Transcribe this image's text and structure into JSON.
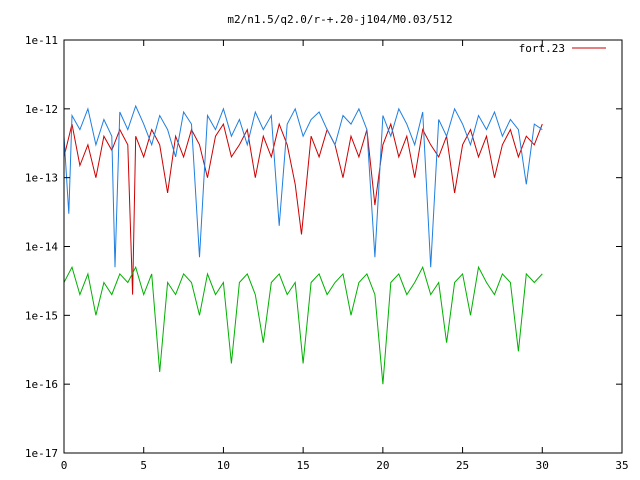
{
  "chart_data": {
    "type": "line",
    "title": "m2/n1.5/q2.0/r-+.20-j104/M0.03/512",
    "xlabel": "",
    "ylabel": "",
    "xlim": [
      0,
      35
    ],
    "ylim": [
      1e-17,
      1e-11
    ],
    "yscale": "log",
    "grid": false,
    "legend_position": "top-right",
    "x_ticks": [
      0,
      5,
      10,
      15,
      20,
      25,
      30,
      35
    ],
    "x_tick_labels": [
      "0",
      "5",
      "10",
      "15",
      "20",
      "25",
      "30",
      "35"
    ],
    "y_ticks": [
      1e-17,
      1e-16,
      1e-15,
      1e-14,
      1e-13,
      1e-12,
      1e-11
    ],
    "y_tick_labels": [
      "1e-17",
      "1e-16",
      "1e-15",
      "1e-14",
      "1e-13",
      "1e-12",
      "1e-11"
    ],
    "series": [
      {
        "name": "fort.23",
        "color": "#cc0000",
        "x": [
          0.0,
          0.5,
          1.0,
          1.5,
          2.0,
          2.5,
          3.0,
          3.5,
          4.0,
          4.3,
          4.5,
          5.0,
          5.5,
          6.0,
          6.5,
          7.0,
          7.5,
          8.0,
          8.5,
          9.0,
          9.5,
          10.0,
          10.5,
          11.0,
          11.5,
          12.0,
          12.5,
          13.0,
          13.5,
          14.0,
          14.5,
          14.9,
          15.5,
          16.0,
          16.5,
          17.0,
          17.5,
          18.0,
          18.5,
          19.0,
          19.5,
          20.0,
          20.5,
          21.0,
          21.5,
          22.0,
          22.5,
          23.0,
          23.5,
          24.0,
          24.5,
          25.0,
          25.5,
          26.0,
          26.5,
          27.0,
          27.5,
          28.0,
          28.5,
          29.0,
          29.5,
          30.0
        ],
        "y": [
          2e-13,
          6e-13,
          1.5e-13,
          3e-13,
          1e-13,
          4e-13,
          2.5e-13,
          5e-13,
          3e-13,
          2e-15,
          4e-13,
          2e-13,
          5e-13,
          3e-13,
          6e-14,
          4e-13,
          2e-13,
          5e-13,
          3e-13,
          1e-13,
          4e-13,
          6e-13,
          2e-13,
          3e-13,
          5e-13,
          1e-13,
          4e-13,
          2e-13,
          6e-13,
          3e-13,
          8e-14,
          1.5e-14,
          4e-13,
          2e-13,
          5e-13,
          3e-13,
          1e-13,
          4e-13,
          2e-13,
          5e-13,
          4e-14,
          3e-13,
          6e-13,
          2e-13,
          4e-13,
          1e-13,
          5e-13,
          3e-13,
          2e-13,
          4e-13,
          6e-14,
          3e-13,
          5e-13,
          2e-13,
          4e-13,
          1e-13,
          3e-13,
          5e-13,
          2e-13,
          4e-13,
          3e-13,
          6e-13
        ]
      },
      {
        "color": "#1f7fe0",
        "x": [
          0.0,
          0.3,
          0.5,
          1.0,
          1.5,
          2.0,
          2.5,
          3.0,
          3.2,
          3.5,
          4.0,
          4.5,
          5.0,
          5.5,
          6.0,
          6.5,
          7.0,
          7.5,
          8.0,
          8.5,
          9.0,
          9.5,
          10.0,
          10.5,
          11.0,
          11.5,
          12.0,
          12.5,
          13.0,
          13.5,
          14.0,
          14.5,
          15.0,
          15.5,
          16.0,
          16.5,
          17.0,
          17.5,
          18.0,
          18.5,
          19.0,
          19.5,
          20.0,
          20.5,
          21.0,
          21.5,
          22.0,
          22.5,
          23.0,
          23.5,
          24.0,
          24.5,
          25.0,
          25.5,
          26.0,
          26.5,
          27.0,
          27.5,
          28.0,
          28.5,
          29.0,
          29.5,
          30.0
        ],
        "y": [
          4e-13,
          3e-14,
          8e-13,
          5e-13,
          1e-12,
          3e-13,
          7e-13,
          4e-13,
          5e-15,
          9e-13,
          5e-13,
          1.1e-12,
          6e-13,
          3e-13,
          8e-13,
          5e-13,
          2e-13,
          9e-13,
          6e-13,
          7e-15,
          8e-13,
          5e-13,
          1e-12,
          4e-13,
          7e-13,
          3e-13,
          9e-13,
          5e-13,
          8e-13,
          2e-14,
          6e-13,
          1e-12,
          4e-13,
          7e-13,
          9e-13,
          5e-13,
          3e-13,
          8e-13,
          6e-13,
          1e-12,
          5e-13,
          7e-15,
          8e-13,
          4e-13,
          1e-12,
          6e-13,
          3e-13,
          9e-13,
          5e-15,
          7e-13,
          4e-13,
          1e-12,
          6e-13,
          3e-13,
          8e-13,
          5e-13,
          9e-13,
          4e-13,
          7e-13,
          5e-13,
          8e-14,
          6e-13,
          5e-13
        ]
      },
      {
        "color": "#00b000",
        "x": [
          0.0,
          0.5,
          1.0,
          1.5,
          2.0,
          2.5,
          3.0,
          3.5,
          4.0,
          4.5,
          5.0,
          5.5,
          6.0,
          6.5,
          7.0,
          7.5,
          8.0,
          8.5,
          9.0,
          9.5,
          10.0,
          10.5,
          11.0,
          11.5,
          12.0,
          12.5,
          13.0,
          13.5,
          14.0,
          14.5,
          15.0,
          15.5,
          16.0,
          16.5,
          17.0,
          17.5,
          18.0,
          18.5,
          19.0,
          19.5,
          20.0,
          20.5,
          21.0,
          21.5,
          22.0,
          22.5,
          23.0,
          23.5,
          24.0,
          24.5,
          25.0,
          25.5,
          26.0,
          26.5,
          27.0,
          27.5,
          28.0,
          28.5,
          29.0,
          29.5,
          30.0
        ],
        "y": [
          3e-15,
          5e-15,
          2e-15,
          4e-15,
          1e-15,
          3e-15,
          2e-15,
          4e-15,
          3e-15,
          5e-15,
          2e-15,
          4e-15,
          1.5e-16,
          3e-15,
          2e-15,
          4e-15,
          3e-15,
          1e-15,
          4e-15,
          2e-15,
          3e-15,
          2e-16,
          3e-15,
          4e-15,
          2e-15,
          4e-16,
          3e-15,
          4e-15,
          2e-15,
          3e-15,
          2e-16,
          3e-15,
          4e-15,
          2e-15,
          3e-15,
          4e-15,
          1e-15,
          3e-15,
          4e-15,
          2e-15,
          1e-16,
          3e-15,
          4e-15,
          2e-15,
          3e-15,
          5e-15,
          2e-15,
          3e-15,
          4e-16,
          3e-15,
          4e-15,
          1e-15,
          5e-15,
          3e-15,
          2e-15,
          4e-15,
          3e-15,
          3e-16,
          4e-15,
          3e-15,
          4e-15
        ]
      }
    ]
  }
}
